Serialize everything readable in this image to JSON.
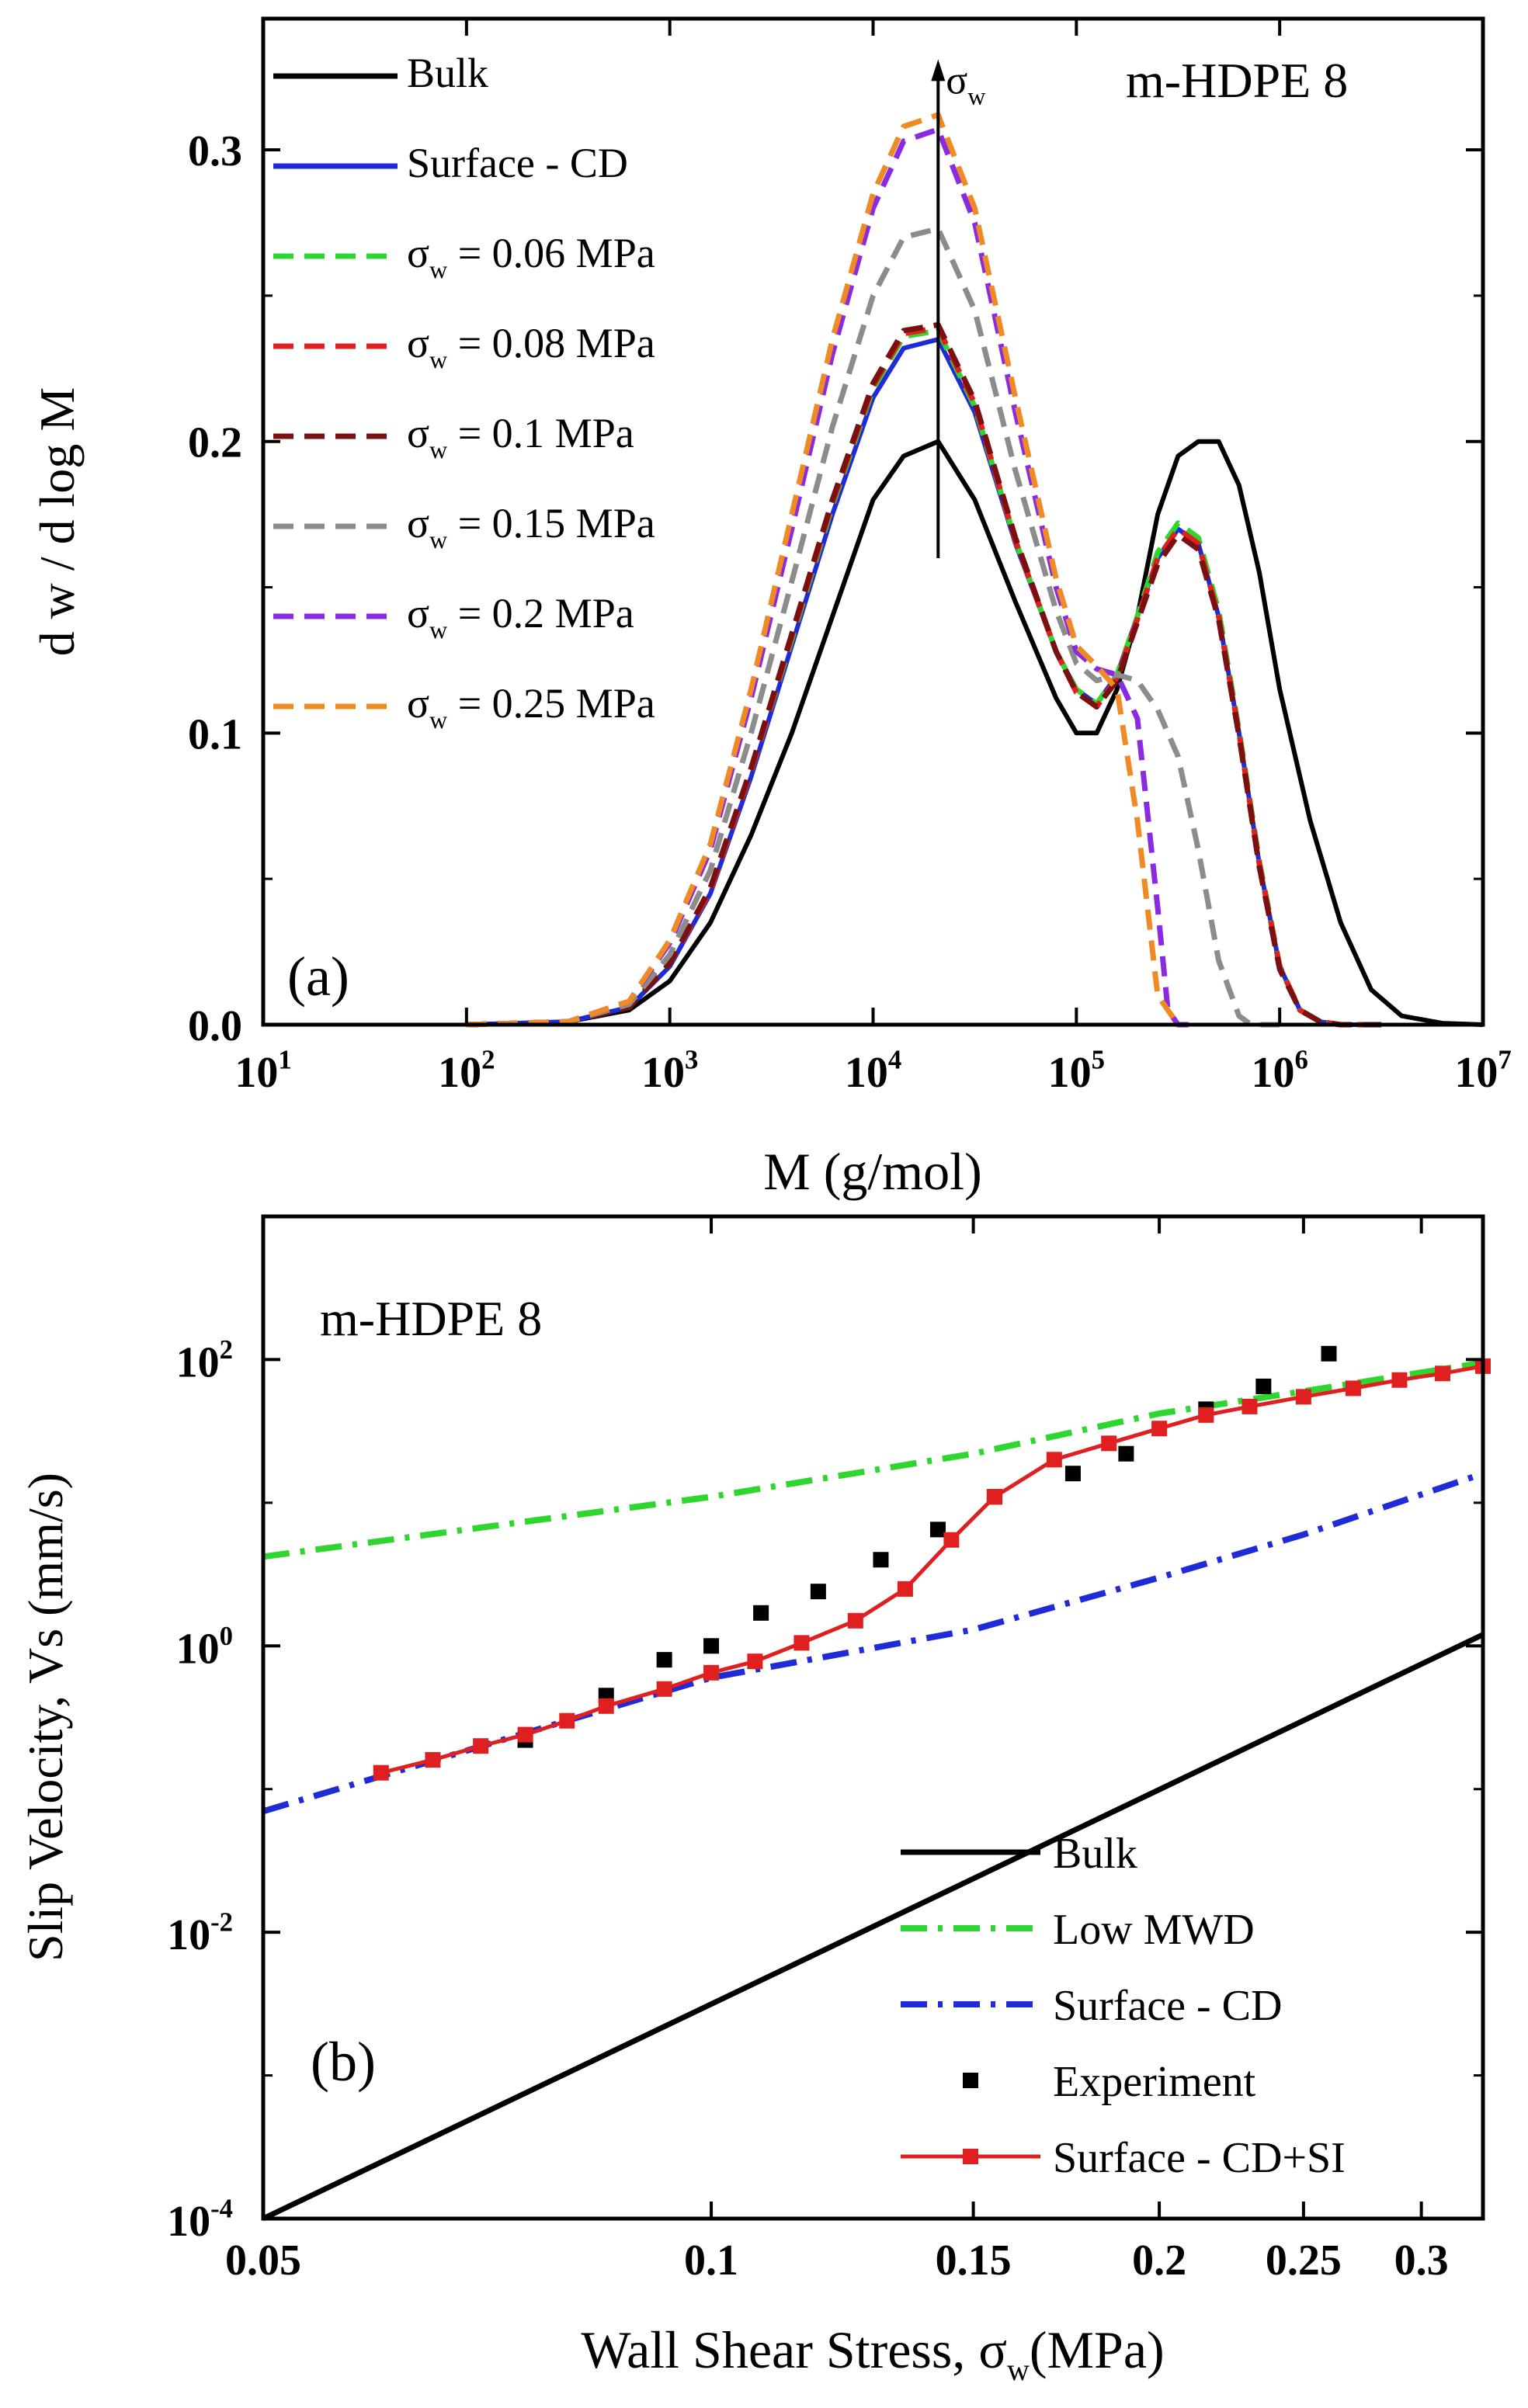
{
  "chart_data": [
    {
      "panel": "a",
      "type": "line",
      "title": "",
      "sample_label": "m-HDPE 8",
      "panel_label": "(a)",
      "xlabel": "M (g/mol)",
      "ylabel": "d w / d log M",
      "xscale": "log",
      "xlim": [
        10,
        10000000
      ],
      "ylim": [
        0,
        0.345
      ],
      "x_ticks": [
        {
          "mantissa": "10",
          "exp": "1",
          "value": 10
        },
        {
          "mantissa": "10",
          "exp": "2",
          "value": 100
        },
        {
          "mantissa": "10",
          "exp": "3",
          "value": 1000
        },
        {
          "mantissa": "10",
          "exp": "4",
          "value": 10000
        },
        {
          "mantissa": "10",
          "exp": "5",
          "value": 100000
        },
        {
          "mantissa": "10",
          "exp": "6",
          "value": 1000000
        },
        {
          "mantissa": "10",
          "exp": "7",
          "value": 10000000
        }
      ],
      "y_ticks": [
        {
          "label": "0.0",
          "value": 0
        },
        {
          "label": "0.1",
          "value": 0.1
        },
        {
          "label": "0.2",
          "value": 0.2
        },
        {
          "label": "0.3",
          "value": 0.3
        }
      ],
      "arrow": {
        "from_logM": 4.32,
        "from_y": 0.16,
        "to_y": 0.33,
        "symbol": "σ",
        "sub": "w"
      },
      "series": [
        {
          "name": "Bulk",
          "legend": {
            "prefix": "Bulk",
            "sub": "",
            "suffix": ""
          },
          "color": "#000000",
          "dash": "solid",
          "logM": [
            2,
            2.5,
            2.8,
            3,
            3.2,
            3.4,
            3.6,
            3.8,
            4,
            4.15,
            4.32,
            4.5,
            4.7,
            4.9,
            5,
            5.1,
            5.2,
            5.3,
            5.4,
            5.5,
            5.6,
            5.7,
            5.8,
            5.9,
            6,
            6.15,
            6.3,
            6.45,
            6.6,
            6.8,
            7
          ],
          "y": [
            0,
            0.001,
            0.005,
            0.015,
            0.035,
            0.065,
            0.1,
            0.14,
            0.18,
            0.195,
            0.2,
            0.18,
            0.145,
            0.112,
            0.1,
            0.1,
            0.115,
            0.14,
            0.175,
            0.195,
            0.2,
            0.2,
            0.185,
            0.155,
            0.115,
            0.07,
            0.035,
            0.012,
            0.003,
            0.0005,
            0
          ]
        },
        {
          "name": "Surface - CD",
          "legend": {
            "prefix": "Surface - CD",
            "sub": "",
            "suffix": ""
          },
          "color": "#1f2bd6",
          "dash": "solid",
          "logM": [
            2,
            2.5,
            2.8,
            3,
            3.2,
            3.4,
            3.6,
            3.8,
            4,
            4.15,
            4.32,
            4.5,
            4.7,
            4.9,
            5,
            5.1,
            5.2,
            5.3,
            5.4,
            5.5,
            5.6,
            5.7,
            5.8,
            5.9,
            6,
            6.1,
            6.2,
            6.3,
            6.5
          ],
          "y": [
            0,
            0.001,
            0.006,
            0.02,
            0.045,
            0.085,
            0.13,
            0.175,
            0.215,
            0.232,
            0.235,
            0.21,
            0.165,
            0.128,
            0.115,
            0.11,
            0.12,
            0.14,
            0.16,
            0.17,
            0.165,
            0.14,
            0.1,
            0.055,
            0.02,
            0.005,
            0.001,
            0,
            0
          ]
        },
        {
          "name": "σw = 0.06 MPa",
          "legend": {
            "prefix": "σ",
            "sub": "w",
            "suffix": " = 0.06 MPa"
          },
          "color": "#2fd62f",
          "dash": "dash",
          "logM": [
            2,
            2.5,
            2.8,
            3,
            3.2,
            3.4,
            3.6,
            3.8,
            4,
            4.15,
            4.32,
            4.5,
            4.7,
            4.9,
            5,
            5.1,
            5.2,
            5.3,
            5.4,
            5.5,
            5.6,
            5.7,
            5.8,
            5.9,
            6,
            6.1,
            6.2,
            6.3,
            6.5
          ],
          "y": [
            0,
            0.001,
            0.006,
            0.021,
            0.046,
            0.087,
            0.132,
            0.178,
            0.218,
            0.236,
            0.238,
            0.212,
            0.166,
            0.128,
            0.115,
            0.11,
            0.12,
            0.14,
            0.162,
            0.172,
            0.167,
            0.142,
            0.101,
            0.056,
            0.02,
            0.005,
            0.001,
            0,
            0
          ]
        },
        {
          "name": "σw = 0.08 MPa",
          "legend": {
            "prefix": "σ",
            "sub": "w",
            "suffix": " = 0.08 MPa"
          },
          "color": "#e02020",
          "dash": "dash",
          "logM": [
            2,
            2.5,
            2.8,
            3,
            3.2,
            3.4,
            3.6,
            3.8,
            4,
            4.15,
            4.32,
            4.5,
            4.7,
            4.9,
            5,
            5.1,
            5.2,
            5.3,
            5.4,
            5.5,
            5.6,
            5.7,
            5.8,
            5.9,
            6,
            6.1,
            6.2,
            6.3,
            6.5
          ],
          "y": [
            0,
            0.001,
            0.006,
            0.021,
            0.046,
            0.087,
            0.133,
            0.179,
            0.219,
            0.237,
            0.239,
            0.213,
            0.166,
            0.128,
            0.114,
            0.109,
            0.119,
            0.139,
            0.16,
            0.17,
            0.165,
            0.14,
            0.1,
            0.055,
            0.02,
            0.005,
            0.001,
            0,
            0
          ]
        },
        {
          "name": "σw = 0.1 MPa",
          "legend": {
            "prefix": "σ",
            "sub": "w",
            "suffix": " = 0.1 MPa"
          },
          "color": "#7a1010",
          "dash": "dash",
          "logM": [
            2,
            2.5,
            2.8,
            3,
            3.2,
            3.4,
            3.6,
            3.8,
            4,
            4.15,
            4.32,
            4.5,
            4.7,
            4.9,
            5,
            5.1,
            5.2,
            5.3,
            5.4,
            5.5,
            5.6,
            5.7,
            5.8,
            5.9,
            6,
            6.1,
            6.2,
            6.3,
            6.5
          ],
          "y": [
            0,
            0.001,
            0.006,
            0.021,
            0.047,
            0.088,
            0.134,
            0.18,
            0.22,
            0.238,
            0.24,
            0.214,
            0.167,
            0.128,
            0.114,
            0.109,
            0.118,
            0.138,
            0.158,
            0.168,
            0.163,
            0.139,
            0.099,
            0.054,
            0.019,
            0.005,
            0.001,
            0,
            0
          ]
        },
        {
          "name": "σw = 0.15 MPa",
          "legend": {
            "prefix": "σ",
            "sub": "w",
            "suffix": " = 0.15 MPa"
          },
          "color": "#8c8c8c",
          "dash": "dash",
          "logM": [
            2,
            2.5,
            2.8,
            3,
            3.2,
            3.4,
            3.6,
            3.8,
            4,
            4.15,
            4.32,
            4.5,
            4.7,
            4.9,
            5,
            5.1,
            5.2,
            5.3,
            5.4,
            5.5,
            5.6,
            5.7,
            5.8,
            5.85,
            5.9,
            6
          ],
          "y": [
            0,
            0.001,
            0.007,
            0.024,
            0.053,
            0.1,
            0.152,
            0.205,
            0.25,
            0.27,
            0.273,
            0.245,
            0.19,
            0.142,
            0.124,
            0.118,
            0.12,
            0.118,
            0.108,
            0.092,
            0.06,
            0.022,
            0.003,
            0.0005,
            0,
            0
          ]
        },
        {
          "name": "σw = 0.2 MPa",
          "legend": {
            "prefix": "σ",
            "sub": "w",
            "suffix": " = 0.2 MPa"
          },
          "color": "#8a2be2",
          "dash": "dash",
          "logM": [
            2,
            2.5,
            2.8,
            3,
            3.2,
            3.4,
            3.6,
            3.8,
            4,
            4.15,
            4.32,
            4.5,
            4.7,
            4.9,
            5,
            5.1,
            5.2,
            5.3,
            5.4,
            5.45,
            5.5,
            5.6
          ],
          "y": [
            0,
            0.001,
            0.008,
            0.028,
            0.06,
            0.112,
            0.17,
            0.23,
            0.28,
            0.303,
            0.307,
            0.275,
            0.21,
            0.15,
            0.128,
            0.122,
            0.12,
            0.105,
            0.04,
            0.005,
            0,
            0
          ]
        },
        {
          "name": "σw = 0.25 MPa",
          "legend": {
            "prefix": "σ",
            "sub": "w",
            "suffix": " = 0.25 MPa"
          },
          "color": "#f08a24",
          "dash": "dash",
          "logM": [
            2,
            2.5,
            2.8,
            3,
            3.2,
            3.4,
            3.6,
            3.8,
            4,
            4.15,
            4.32,
            4.5,
            4.7,
            4.9,
            5,
            5.1,
            5.2,
            5.3,
            5.4,
            5.5
          ],
          "y": [
            0,
            0.001,
            0.008,
            0.029,
            0.062,
            0.115,
            0.175,
            0.235,
            0.285,
            0.308,
            0.312,
            0.28,
            0.215,
            0.153,
            0.13,
            0.123,
            0.115,
            0.07,
            0.01,
            0
          ]
        }
      ]
    },
    {
      "panel": "b",
      "type": "line",
      "title": "",
      "sample_label": "m-HDPE 8",
      "panel_label": "(b)",
      "xlabel": {
        "prefix": "Wall Shear Stress, σ",
        "sub": "w",
        "suffix": "(MPa)"
      },
      "ylabel": "Slip Velocity, Vs (mm/s)",
      "xscale": "log",
      "yscale": "log",
      "xlim": [
        0.05,
        0.33
      ],
      "ylim": [
        0.0001,
        1000
      ],
      "x_ticks": [
        {
          "label": "0.05",
          "value": 0.05
        },
        {
          "label": "0.1",
          "value": 0.1
        },
        {
          "label": "0.15",
          "value": 0.15
        },
        {
          "label": "0.2",
          "value": 0.2
        },
        {
          "label": "0.25",
          "value": 0.25
        },
        {
          "label": "0.3",
          "value": 0.3
        }
      ],
      "y_ticks": [
        {
          "mantissa": "10",
          "exp": "-4",
          "value": 0.0001
        },
        {
          "mantissa": "10",
          "exp": "-2",
          "value": 0.01
        },
        {
          "mantissa": "10",
          "exp": "0",
          "value": 1
        },
        {
          "mantissa": "10",
          "exp": "2",
          "value": 100
        }
      ],
      "series": [
        {
          "name": "Bulk",
          "color": "#000000",
          "style": "solid",
          "x": [
            0.05,
            0.33
          ],
          "y": [
            0.0001,
            1.2
          ]
        },
        {
          "name": "Low MWD",
          "color": "#2fd62f",
          "style": "dashdot",
          "x": [
            0.05,
            0.1,
            0.15,
            0.2,
            0.25,
            0.33
          ],
          "y": [
            4.2,
            11,
            22,
            42,
            60,
            95
          ]
        },
        {
          "name": "Surface - CD",
          "color": "#1f2bd6",
          "style": "dashdot",
          "x": [
            0.05,
            0.1,
            0.15,
            0.2,
            0.25,
            0.33
          ],
          "y": [
            0.07,
            0.6,
            1.3,
            3,
            6,
            16
          ]
        },
        {
          "name": "Experiment",
          "color": "#000000",
          "style": "markers",
          "x": [
            0.075,
            0.085,
            0.093,
            0.1,
            0.108,
            0.118,
            0.13,
            0.142,
            0.155,
            0.175,
            0.19,
            0.215,
            0.235,
            0.26
          ],
          "y": [
            0.22,
            0.45,
            0.8,
            1.0,
            1.7,
            2.4,
            4.0,
            6.5,
            11,
            16,
            22,
            45,
            65,
            110
          ]
        },
        {
          "name": "Surface - CD+SI",
          "color": "#e02020",
          "style": "line-markers",
          "x": [
            0.06,
            0.065,
            0.07,
            0.075,
            0.08,
            0.085,
            0.093,
            0.1,
            0.107,
            0.115,
            0.125,
            0.135,
            0.145,
            0.155,
            0.17,
            0.185,
            0.2,
            0.215,
            0.23,
            0.25,
            0.27,
            0.29,
            0.31,
            0.33
          ],
          "y": [
            0.13,
            0.16,
            0.2,
            0.24,
            0.3,
            0.38,
            0.5,
            0.65,
            0.78,
            1.05,
            1.5,
            2.5,
            5.5,
            11,
            20,
            26,
            33,
            41,
            47,
            55,
            63,
            72,
            80,
            90
          ]
        }
      ]
    }
  ]
}
